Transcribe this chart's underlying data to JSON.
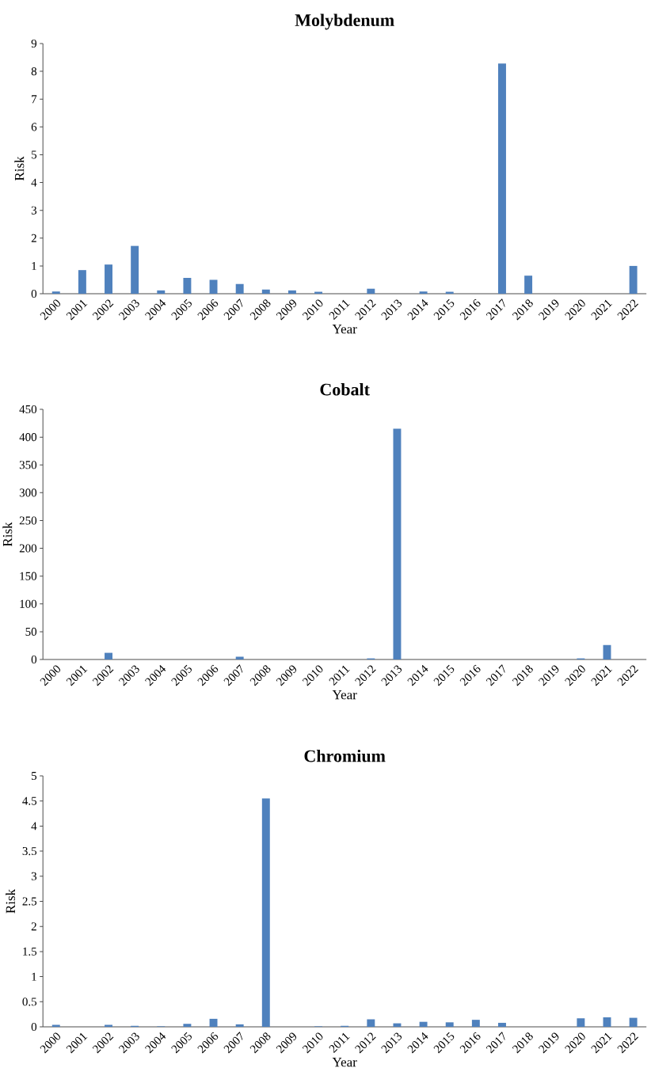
{
  "chart_data": [
    {
      "type": "bar",
      "title": "Molybdenum",
      "xlabel": "Year",
      "ylabel": "Risk",
      "color": "#4f81bd",
      "categories": [
        "2000",
        "2001",
        "2002",
        "2003",
        "2004",
        "2005",
        "2006",
        "2007",
        "2008",
        "2009",
        "2010",
        "2011",
        "2012",
        "2013",
        "2014",
        "2015",
        "2016",
        "2017",
        "2018",
        "2019",
        "2020",
        "2021",
        "2022"
      ],
      "values": [
        0.08,
        0.85,
        1.05,
        1.72,
        0.12,
        0.57,
        0.5,
        0.35,
        0.15,
        0.12,
        0.07,
        0,
        0.18,
        0,
        0.08,
        0.07,
        0,
        8.28,
        0.65,
        0,
        0,
        0,
        1.0
      ],
      "ylim": [
        0,
        9
      ],
      "yticks": [
        0,
        1,
        2,
        3,
        4,
        5,
        6,
        7,
        8,
        9
      ]
    },
    {
      "type": "bar",
      "title": "Cobalt",
      "xlabel": "Year",
      "ylabel": "Risk",
      "color": "#4f81bd",
      "categories": [
        "2000",
        "2001",
        "2002",
        "2003",
        "2004",
        "2005",
        "2006",
        "2007",
        "2008",
        "2009",
        "2010",
        "2011",
        "2012",
        "2013",
        "2014",
        "2015",
        "2016",
        "2017",
        "2018",
        "2019",
        "2020",
        "2021",
        "2022"
      ],
      "values": [
        0,
        0,
        12,
        0,
        0,
        0,
        0,
        5,
        0,
        0,
        0,
        0,
        2,
        415,
        0,
        0,
        0,
        0,
        0,
        0,
        2,
        26,
        0
      ],
      "ylim": [
        0,
        450
      ],
      "yticks": [
        0,
        50,
        100,
        150,
        200,
        250,
        300,
        350,
        400,
        450
      ]
    },
    {
      "type": "bar",
      "title": "Chromium",
      "xlabel": "Year",
      "ylabel": "Risk",
      "color": "#4f81bd",
      "categories": [
        "2000",
        "2001",
        "2002",
        "2003",
        "2004",
        "2005",
        "2006",
        "2007",
        "2008",
        "2009",
        "2010",
        "2011",
        "2012",
        "2013",
        "2014",
        "2015",
        "2016",
        "2017",
        "2018",
        "2019",
        "2020",
        "2021",
        "2022"
      ],
      "values": [
        0.04,
        0,
        0.04,
        0.02,
        0.01,
        0.06,
        0.16,
        0.05,
        4.55,
        0,
        0.01,
        0.02,
        0.15,
        0.07,
        0.1,
        0.09,
        0.14,
        0.08,
        0,
        0,
        0.17,
        0.19,
        0.18
      ],
      "ylim": [
        0,
        5
      ],
      "yticks": [
        0,
        0.5,
        1,
        1.5,
        2,
        2.5,
        3,
        3.5,
        4,
        4.5,
        5
      ]
    }
  ]
}
